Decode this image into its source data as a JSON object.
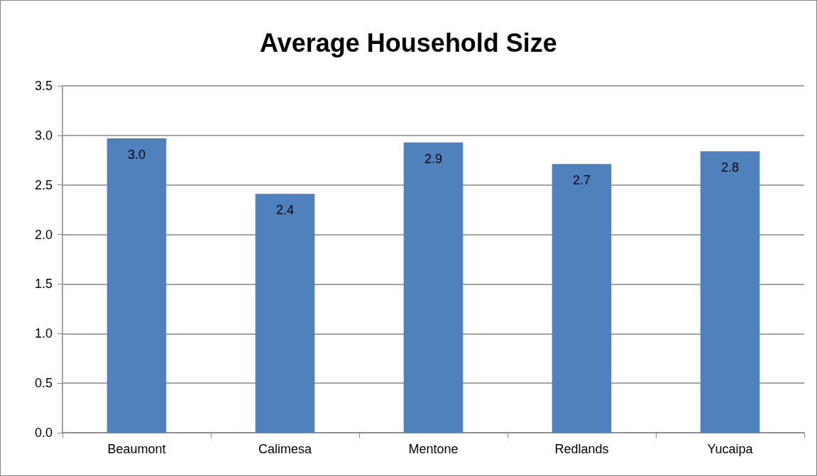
{
  "chart_data": {
    "type": "bar",
    "title": "Average Household Size",
    "categories": [
      "Beaumont",
      "Calimesa",
      "Mentone",
      "Redlands",
      "Yucaipa"
    ],
    "values": [
      2.97,
      2.41,
      2.93,
      2.71,
      2.84
    ],
    "value_labels": [
      "3.0",
      "2.4",
      "2.9",
      "2.7",
      "2.8"
    ],
    "color": "#4f81bd",
    "ylim": [
      0,
      3.5
    ],
    "yticks": [
      {
        "value": 0,
        "label": "0.0"
      },
      {
        "value": 0.5,
        "label": "0.5"
      },
      {
        "value": 1,
        "label": "1.0"
      },
      {
        "value": 1.5,
        "label": "1.5"
      },
      {
        "value": 2,
        "label": "2.0"
      },
      {
        "value": 2.5,
        "label": "2.5"
      },
      {
        "value": 3,
        "label": "3.0"
      },
      {
        "value": 3.5,
        "label": "3.5"
      }
    ],
    "grid": "y"
  }
}
